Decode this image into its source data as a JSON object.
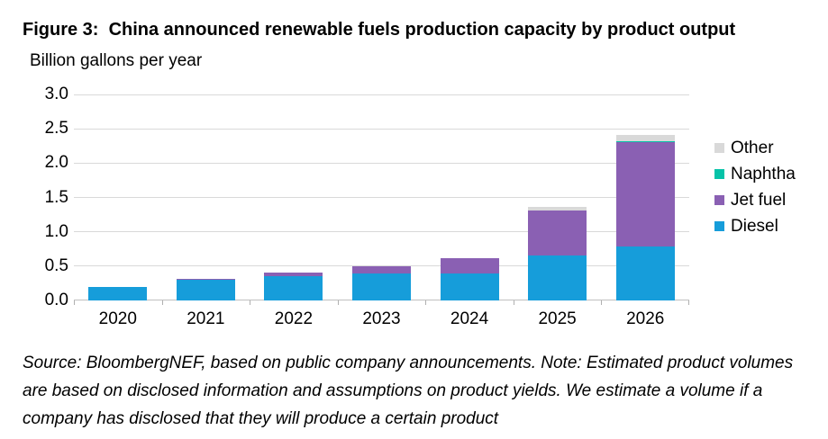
{
  "figure": {
    "title": "Figure 3:  China announced renewable fuels production capacity by product output",
    "source_note": "Source: BloombergNEF, based on public company announcements. Note: Estimated product volumes are based on disclosed information and assumptions on product yields. We estimate a volume if a company has disclosed that they will produce a certain product"
  },
  "chart_data": {
    "type": "bar",
    "stacked": true,
    "title": "China announced renewable fuels production capacity by product output",
    "ylabel": "Billion gallons per year",
    "xlabel": "",
    "categories": [
      "2020",
      "2021",
      "2022",
      "2023",
      "2024",
      "2025",
      "2026"
    ],
    "series": [
      {
        "name": "Diesel",
        "color": "#169dda",
        "values": [
          0.19,
          0.3,
          0.35,
          0.39,
          0.39,
          0.65,
          0.78
        ]
      },
      {
        "name": "Jet fuel",
        "color": "#8a60b3",
        "values": [
          0.0,
          0.02,
          0.05,
          0.11,
          0.23,
          0.66,
          1.52
        ]
      },
      {
        "name": "Naphtha",
        "color": "#06c3a8",
        "values": [
          0.0,
          0.0,
          0.0,
          0.0,
          0.0,
          0.0,
          0.02
        ]
      },
      {
        "name": "Other",
        "color": "#d9d9d9",
        "values": [
          0.0,
          0.0,
          0.0,
          0.0,
          0.0,
          0.05,
          0.09
        ]
      }
    ],
    "legend": [
      {
        "label": "Other",
        "color": "#d9d9d9"
      },
      {
        "label": "Naphtha",
        "color": "#06c3a8"
      },
      {
        "label": "Jet fuel",
        "color": "#8a60b3"
      },
      {
        "label": "Diesel",
        "color": "#169dda"
      }
    ],
    "ylim": [
      0,
      3.0
    ],
    "y_ticks": [
      "0.0",
      "0.5",
      "1.0",
      "1.5",
      "2.0",
      "2.5",
      "3.0"
    ],
    "grid": "horizontal",
    "legend_position": "right",
    "grid_color": "#d9d9d9",
    "axis_color": "#bfbfbf",
    "tick_color": "#b0b0b0"
  }
}
